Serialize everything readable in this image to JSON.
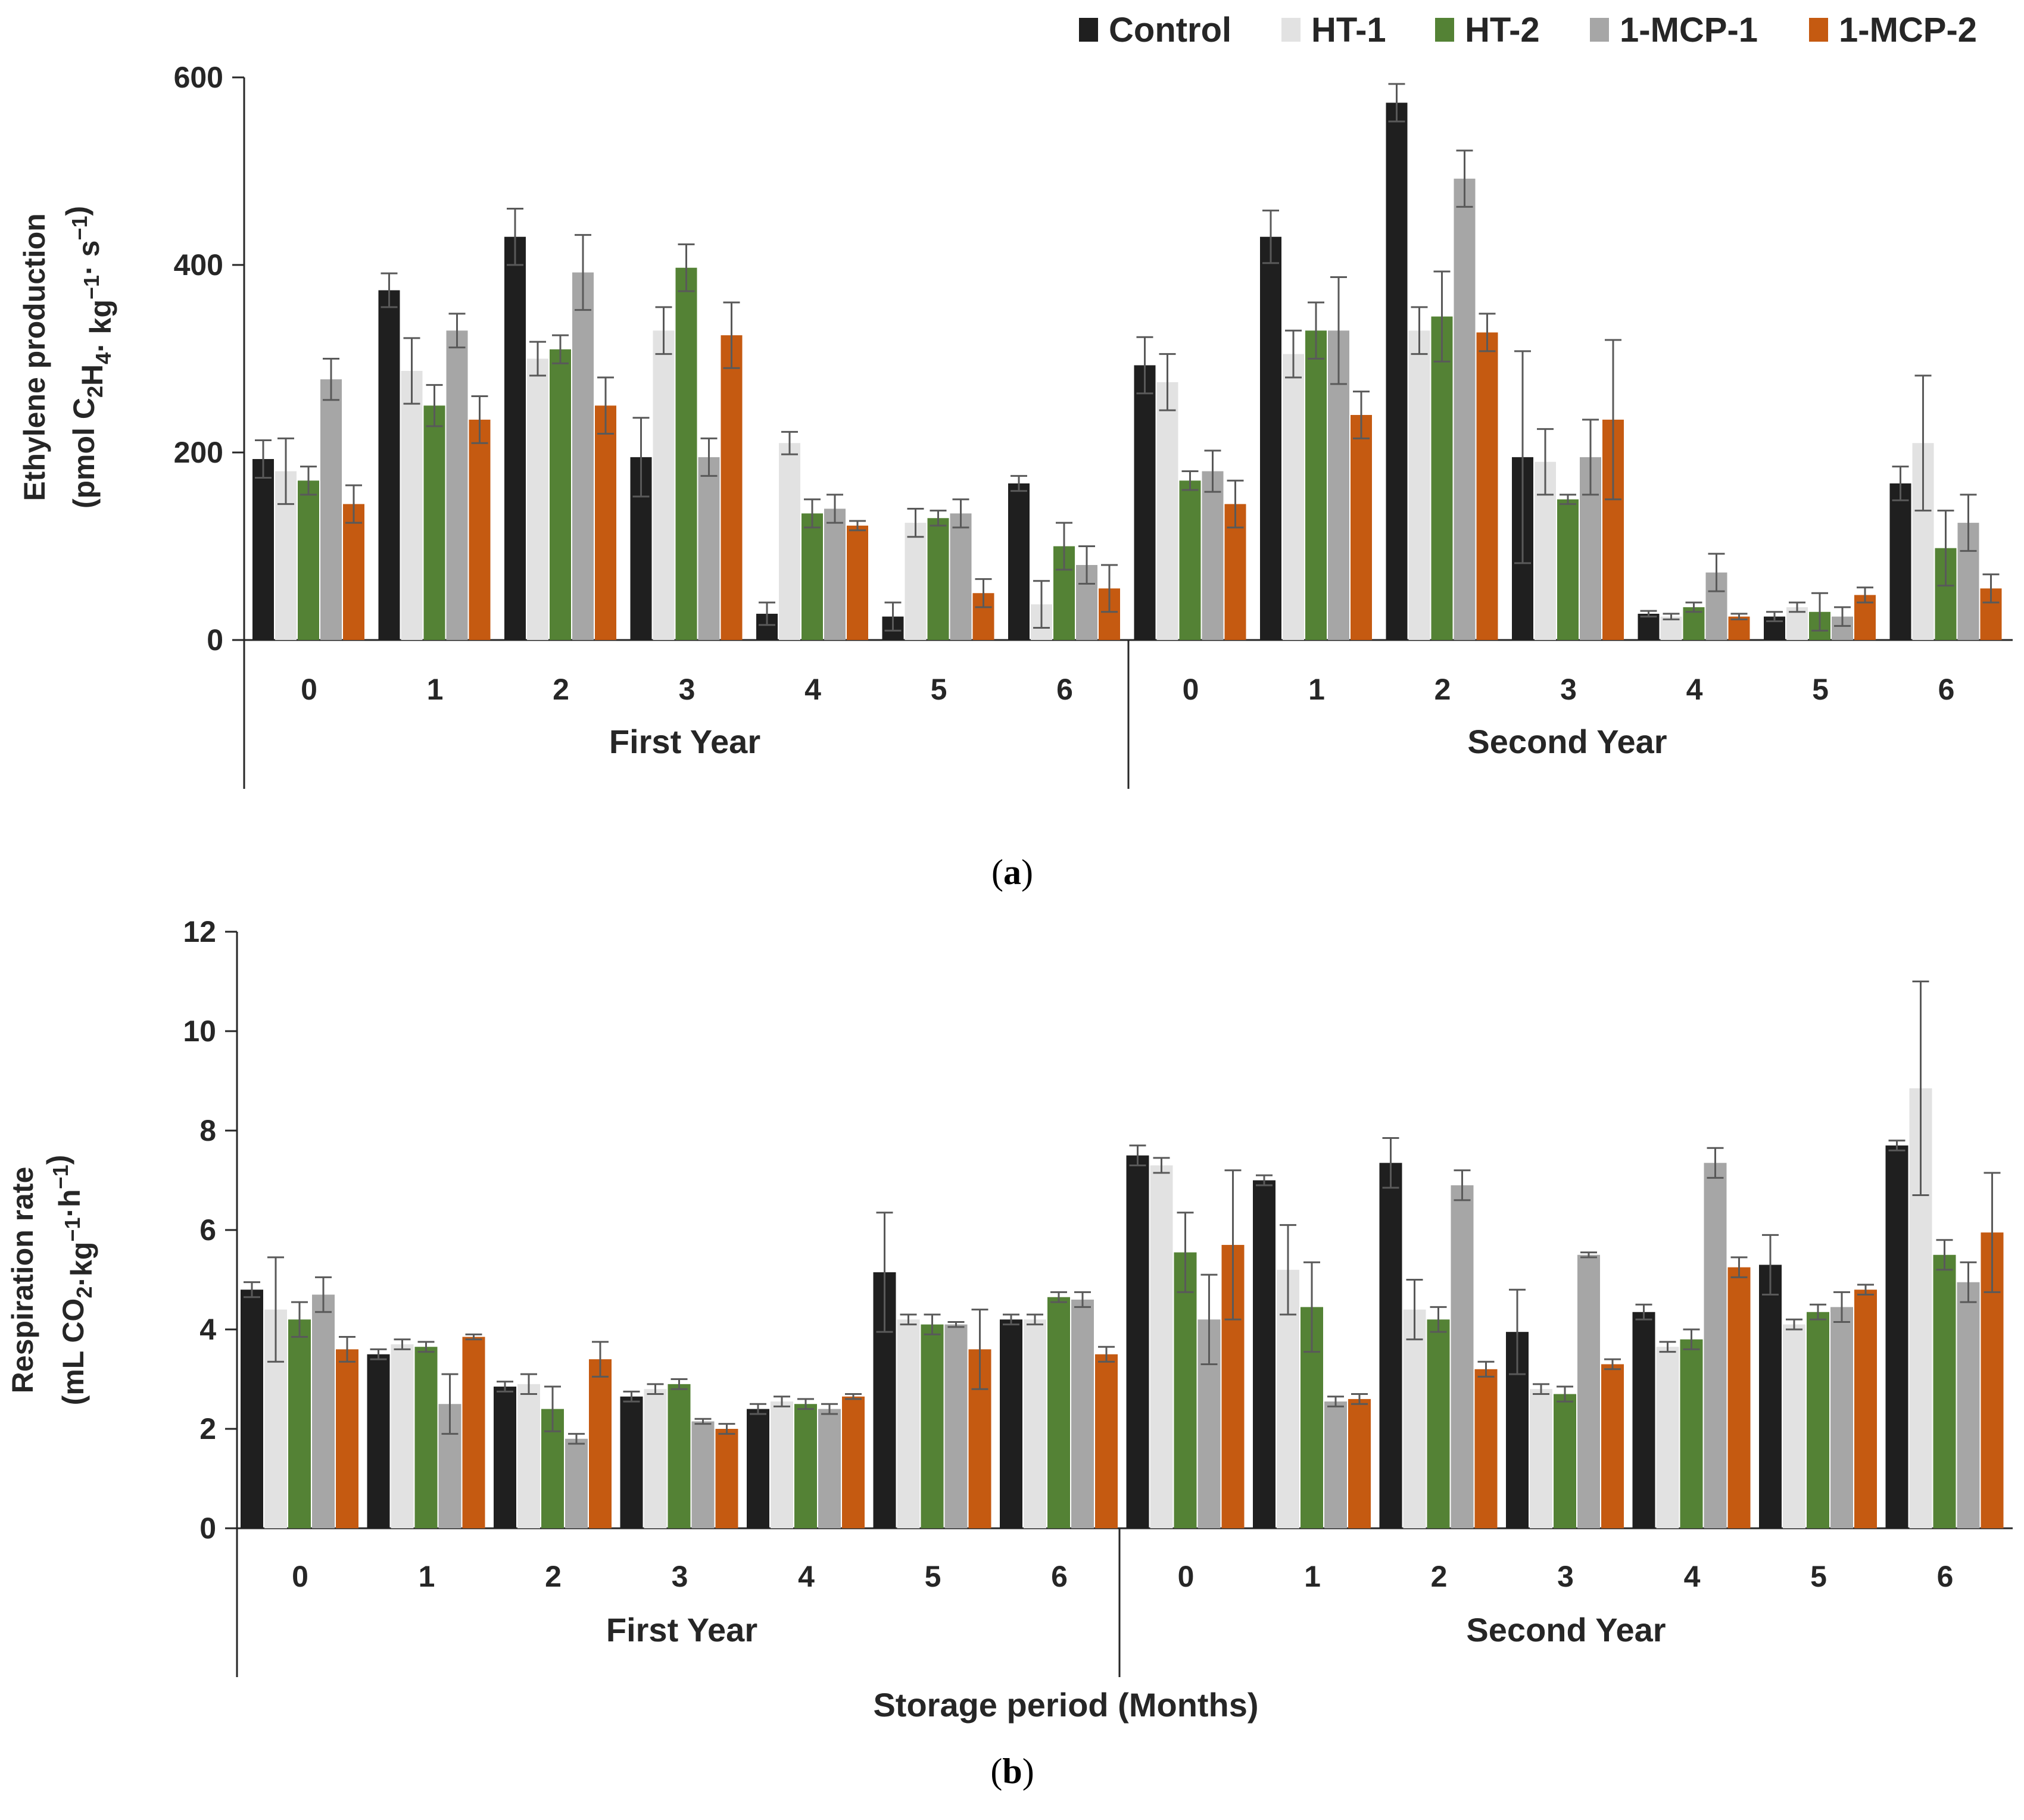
{
  "colors": {
    "Control": "#1f1f1f",
    "HT-1": "#e2e2e2",
    "HT-2": "#548235",
    "1-MCP-1": "#a6a6a6",
    "1-MCP-2": "#c55a11",
    "axis": "#262626",
    "errorbar": "#595959"
  },
  "legend": [
    "Control",
    "HT-1",
    "HT-2",
    "1-MCP-1",
    "1-MCP-2"
  ],
  "chart_data": [
    {
      "panel": "(a)",
      "panel_letter": "a",
      "type": "bar",
      "ylabel_line1": "Ethylene production",
      "ylabel_line2": "(pmol C2H4· kg−1· s−1)",
      "ylim": [
        0,
        600
      ],
      "yticks": [
        "0",
        "200",
        "400",
        "600"
      ],
      "months": [
        "0",
        "1",
        "2",
        "3",
        "4",
        "5",
        "6"
      ],
      "groups": [
        "First Year",
        "Second Year"
      ],
      "xlabel": "",
      "series": [
        {
          "name": "Control",
          "values": [
            193,
            373,
            430,
            195,
            28,
            25,
            167,
            293,
            430,
            573,
            195,
            28,
            25,
            167
          ]
        },
        {
          "name": "HT-1",
          "values": [
            180,
            287,
            300,
            330,
            210,
            125,
            38,
            275,
            305,
            330,
            190,
            25,
            35,
            210
          ]
        },
        {
          "name": "HT-2",
          "values": [
            170,
            250,
            310,
            397,
            135,
            130,
            100,
            170,
            330,
            345,
            150,
            35,
            30,
            98
          ]
        },
        {
          "name": "1-MCP-1",
          "values": [
            278,
            330,
            392,
            195,
            140,
            135,
            80,
            180,
            330,
            492,
            195,
            72,
            25,
            125
          ]
        },
        {
          "name": "1-MCP-2",
          "values": [
            145,
            235,
            250,
            325,
            122,
            50,
            55,
            145,
            240,
            328,
            235,
            25,
            48,
            55
          ]
        }
      ],
      "errors": [
        [
          20,
          18,
          30,
          42,
          12,
          15,
          8,
          30,
          28,
          20,
          113,
          3,
          5,
          18
        ],
        [
          35,
          35,
          18,
          25,
          12,
          15,
          25,
          30,
          25,
          25,
          35,
          3,
          5,
          72
        ],
        [
          15,
          22,
          15,
          25,
          15,
          8,
          25,
          10,
          30,
          48,
          5,
          5,
          20,
          40
        ],
        [
          22,
          18,
          40,
          20,
          15,
          15,
          20,
          22,
          57,
          30,
          40,
          20,
          10,
          30
        ],
        [
          20,
          25,
          30,
          35,
          5,
          15,
          25,
          25,
          25,
          20,
          85,
          3,
          8,
          15
        ]
      ]
    },
    {
      "panel": "(b)",
      "panel_letter": "b",
      "type": "bar",
      "ylabel_line1": "Respiration rate",
      "ylabel_line2": "(mL CO2·kg−1·h−1)",
      "ylim": [
        0,
        12
      ],
      "yticks": [
        "0",
        "2",
        "4",
        "6",
        "8",
        "10",
        "12"
      ],
      "months": [
        "0",
        "1",
        "2",
        "3",
        "4",
        "5",
        "6"
      ],
      "groups": [
        "First Year",
        "Second Year"
      ],
      "xlabel": "Storage period (Months)",
      "series": [
        {
          "name": "Control",
          "values": [
            4.8,
            3.5,
            2.85,
            2.65,
            2.4,
            5.15,
            4.2,
            7.5,
            7.0,
            7.35,
            3.95,
            4.35,
            5.3,
            7.7
          ]
        },
        {
          "name": "HT-1",
          "values": [
            4.4,
            3.7,
            2.9,
            2.8,
            2.55,
            4.2,
            4.2,
            7.3,
            5.2,
            4.4,
            2.8,
            3.65,
            4.1,
            8.85
          ]
        },
        {
          "name": "HT-2",
          "values": [
            4.2,
            3.65,
            2.4,
            2.9,
            2.5,
            4.1,
            4.65,
            5.55,
            4.45,
            4.2,
            2.7,
            3.8,
            4.35,
            5.5
          ]
        },
        {
          "name": "1-MCP-1",
          "values": [
            4.7,
            2.5,
            1.8,
            2.15,
            2.4,
            4.1,
            4.6,
            4.2,
            2.55,
            6.9,
            5.5,
            7.35,
            4.45,
            4.95
          ]
        },
        {
          "name": "1-MCP-2",
          "values": [
            3.6,
            3.85,
            3.4,
            2.0,
            2.65,
            3.6,
            3.5,
            5.7,
            2.6,
            3.2,
            3.3,
            5.25,
            4.8,
            5.95
          ]
        }
      ],
      "errors": [
        [
          0.15,
          0.1,
          0.1,
          0.1,
          0.1,
          1.2,
          0.1,
          0.2,
          0.1,
          0.5,
          0.85,
          0.15,
          0.6,
          0.1
        ],
        [
          1.05,
          0.1,
          0.2,
          0.1,
          0.1,
          0.1,
          0.1,
          0.15,
          0.9,
          0.6,
          0.1,
          0.1,
          0.1,
          2.15
        ],
        [
          0.35,
          0.1,
          0.45,
          0.1,
          0.1,
          0.2,
          0.1,
          0.8,
          0.9,
          0.25,
          0.15,
          0.2,
          0.15,
          0.3
        ],
        [
          0.35,
          0.6,
          0.1,
          0.05,
          0.1,
          0.05,
          0.15,
          0.9,
          0.1,
          0.3,
          0.05,
          0.3,
          0.3,
          0.4
        ],
        [
          0.25,
          0.05,
          0.35,
          0.1,
          0.05,
          0.8,
          0.15,
          1.5,
          0.1,
          0.15,
          0.1,
          0.2,
          0.1,
          1.2
        ]
      ]
    }
  ]
}
